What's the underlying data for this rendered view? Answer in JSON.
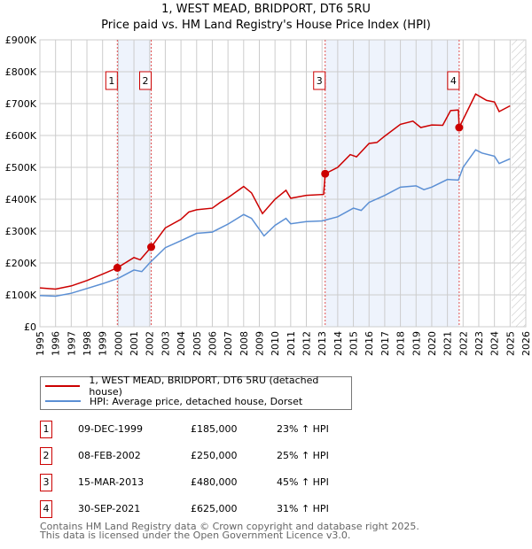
{
  "title": "1, WEST MEAD, BRIDPORT, DT6 5RU",
  "subtitle": "Price paid vs. HM Land Registry's House Price Index (HPI)",
  "chart_data": {
    "type": "line",
    "title": "1, WEST MEAD, BRIDPORT, DT6 5RU",
    "subtitle": "Price paid vs. HM Land Registry's House Price Index (HPI)",
    "xlim": [
      1995,
      2026
    ],
    "ylim": [
      0,
      900000
    ],
    "xticks": [
      "1995",
      "1996",
      "1997",
      "1998",
      "1999",
      "2000",
      "2001",
      "2002",
      "2003",
      "2004",
      "2005",
      "2006",
      "2007",
      "2008",
      "2009",
      "2010",
      "2011",
      "2012",
      "2013",
      "2014",
      "2015",
      "2016",
      "2017",
      "2018",
      "2019",
      "2020",
      "2021",
      "2022",
      "2023",
      "2024",
      "2025",
      "2026"
    ],
    "yticks": [
      {
        "v": 0,
        "l": "£0"
      },
      {
        "v": 100000,
        "l": "£100K"
      },
      {
        "v": 200000,
        "l": "£200K"
      },
      {
        "v": 300000,
        "l": "£300K"
      },
      {
        "v": 400000,
        "l": "£400K"
      },
      {
        "v": 500000,
        "l": "£500K"
      },
      {
        "v": 600000,
        "l": "£600K"
      },
      {
        "v": 700000,
        "l": "£700K"
      },
      {
        "v": 800000,
        "l": "£800K"
      },
      {
        "v": 900000,
        "l": "£900K"
      }
    ],
    "grid": true,
    "series": [
      {
        "name": "1, WEST MEAD, BRIDPORT, DT6 5RU (detached house)",
        "color": "#cc0000",
        "x": [
          1995,
          1996,
          1997,
          1998,
          1999,
          1999.94,
          2001,
          2001.4,
          2002.1,
          2003,
          2004,
          2004.5,
          2005,
          2006,
          2006.5,
          2007,
          2008,
          2008.5,
          2009.2,
          2010,
          2010.7,
          2011,
          2012,
          2013.1,
          2013.2,
          2014,
          2014.8,
          2015.2,
          2016,
          2016.5,
          2017,
          2018,
          2018.8,
          2019.3,
          2020,
          2020.7,
          2021.2,
          2021.7,
          2021.75,
          2022.5,
          2022.8,
          2023.5,
          2024,
          2024.3,
          2025
        ],
        "y": [
          122,
          118,
          128,
          145,
          165,
          185,
          217,
          210,
          250,
          310,
          337,
          360,
          367,
          372,
          390,
          405,
          440,
          420,
          355,
          400,
          428,
          403,
          412,
          415,
          480,
          500,
          540,
          533,
          575,
          578,
          598,
          635,
          645,
          625,
          633,
          632,
          678,
          680,
          625,
          700,
          730,
          710,
          705,
          675,
          693
        ]
      },
      {
        "name": "HPI: Average price, detached house, Dorset",
        "color": "#5b8fd4",
        "x": [
          1995,
          1996,
          1997,
          1998,
          1999,
          2000,
          2001,
          2001.5,
          2002,
          2003,
          2004,
          2005,
          2006,
          2007,
          2008,
          2008.5,
          2009.3,
          2010,
          2010.7,
          2011,
          2012,
          2013,
          2014,
          2015,
          2015.5,
          2016,
          2017,
          2018,
          2019,
          2019.5,
          2020,
          2021,
          2021.7,
          2022,
          2022.8,
          2023.2,
          2024,
          2024.3,
          2025
        ],
        "y": [
          98,
          96,
          105,
          120,
          135,
          152,
          178,
          173,
          200,
          248,
          270,
          293,
          297,
          322,
          352,
          340,
          285,
          318,
          340,
          323,
          330,
          332,
          345,
          372,
          365,
          390,
          412,
          438,
          442,
          430,
          438,
          462,
          460,
          500,
          555,
          545,
          535,
          512,
          527
        ]
      }
    ],
    "y_units": "thousands GBP",
    "sales": [
      {
        "n": "1",
        "x": 1999.94,
        "y": 185,
        "date": "09-DEC-1999",
        "price": "£185,000",
        "hpi": "23% ↑ HPI"
      },
      {
        "n": "2",
        "x": 2002.1,
        "y": 250,
        "date": "08-FEB-2002",
        "price": "£250,000",
        "hpi": "25% ↑ HPI"
      },
      {
        "n": "3",
        "x": 2013.2,
        "y": 480,
        "date": "15-MAR-2013",
        "price": "£480,000",
        "hpi": "45% ↑ HPI"
      },
      {
        "n": "4",
        "x": 2021.75,
        "y": 625,
        "date": "30-SEP-2021",
        "price": "£625,000",
        "hpi": "31% ↑ HPI"
      }
    ],
    "forecast_start": 2025.1
  },
  "legend": {
    "red": "1, WEST MEAD, BRIDPORT, DT6 5RU (detached house)",
    "blue": "HPI: Average price, detached house, Dorset"
  },
  "footer": {
    "line1": "Contains HM Land Registry data © Crown copyright and database right 2025.",
    "line2": "This data is licensed under the Open Government Licence v3.0."
  }
}
